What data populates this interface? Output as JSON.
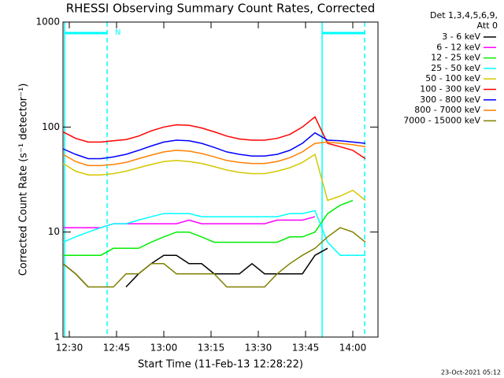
{
  "chart_data": {
    "type": "line",
    "title": "RHESSI Observing Summary Count Rates, Corrected",
    "xlabel": "Start Time (11-Feb-13 12:28:22)",
    "ylabel": "Corrected Count Rate (s⁻¹ detector⁻¹)",
    "legend_header": [
      "Det 1,3,4,5,6,9,",
      "Att 0"
    ],
    "annotation": "N",
    "footer": "23-Oct-2021 05:12",
    "log_y": true,
    "ylim": [
      1,
      1000
    ],
    "yticks": [
      1,
      10,
      100,
      1000
    ],
    "xlim": [
      "12:28",
      "14:08"
    ],
    "xticks": [
      "12:30",
      "12:45",
      "13:00",
      "13:15",
      "13:30",
      "13:45",
      "14:00"
    ],
    "legend": "right",
    "x": [
      "12:28",
      "12:32",
      "12:36",
      "12:40",
      "12:44",
      "12:48",
      "12:52",
      "12:56",
      "13:00",
      "13:04",
      "13:08",
      "13:12",
      "13:16",
      "13:20",
      "13:24",
      "13:28",
      "13:32",
      "13:36",
      "13:40",
      "13:44",
      "13:48",
      "13:52",
      "13:56",
      "14:00",
      "14:04"
    ],
    "series": [
      {
        "name": "3 - 6 keV",
        "color": "#000000",
        "values": [
          5,
          4,
          3,
          null,
          null,
          3,
          4,
          5,
          6,
          6,
          5,
          5,
          4,
          4,
          4,
          5,
          4,
          4,
          4,
          4,
          6,
          7,
          null,
          null,
          null
        ]
      },
      {
        "name": "6 - 12 keV",
        "color": "#ff00ff",
        "values": [
          11,
          11,
          11,
          11,
          12,
          12,
          12,
          12,
          12,
          12,
          13,
          12,
          12,
          12,
          12,
          12,
          12,
          13,
          13,
          13,
          14,
          null,
          null,
          null,
          null
        ]
      },
      {
        "name": "12 - 25 keV",
        "color": "#00ee00",
        "values": [
          6,
          6,
          6,
          6,
          7,
          7,
          7,
          8,
          9,
          10,
          10,
          9,
          8,
          8,
          8,
          8,
          8,
          8,
          9,
          9,
          10,
          15,
          18,
          20,
          null
        ]
      },
      {
        "name": "25 - 50 keV",
        "color": "#00ffff",
        "values": [
          8,
          9,
          10,
          11,
          12,
          12,
          13,
          14,
          15,
          15,
          15,
          14,
          14,
          14,
          14,
          14,
          14,
          14,
          15,
          15,
          16,
          8,
          6,
          6,
          6
        ]
      },
      {
        "name": "50 - 100 keV",
        "color": "#d4c800",
        "values": [
          45,
          38,
          35,
          35,
          36,
          38,
          41,
          44,
          47,
          48,
          47,
          45,
          42,
          39,
          37,
          36,
          36,
          38,
          41,
          46,
          55,
          20,
          22,
          25,
          20
        ]
      },
      {
        "name": "100 - 300 keV",
        "color": "#ff0000",
        "values": [
          90,
          78,
          72,
          72,
          74,
          76,
          82,
          92,
          100,
          105,
          104,
          98,
          90,
          82,
          77,
          75,
          75,
          78,
          85,
          100,
          125,
          70,
          65,
          60,
          50
        ]
      },
      {
        "name": "300 - 800 keV",
        "color": "#0000ff",
        "values": [
          62,
          55,
          50,
          50,
          52,
          55,
          60,
          66,
          72,
          75,
          74,
          70,
          64,
          58,
          55,
          53,
          53,
          55,
          60,
          70,
          88,
          75,
          74,
          72,
          70
        ]
      },
      {
        "name": "800 - 7000 keV",
        "color": "#ff8000",
        "values": [
          55,
          47,
          43,
          43,
          44,
          46,
          50,
          54,
          58,
          60,
          59,
          56,
          52,
          48,
          46,
          45,
          45,
          47,
          51,
          58,
          70,
          72,
          70,
          68,
          65
        ]
      },
      {
        "name": "7000 - 15000 keV",
        "color": "#808000",
        "values": [
          5,
          4,
          3,
          3,
          3,
          4,
          4,
          5,
          5,
          4,
          4,
          4,
          4,
          3,
          3,
          3,
          3,
          4,
          5,
          6,
          7,
          9,
          11,
          10,
          8
        ]
      }
    ]
  }
}
